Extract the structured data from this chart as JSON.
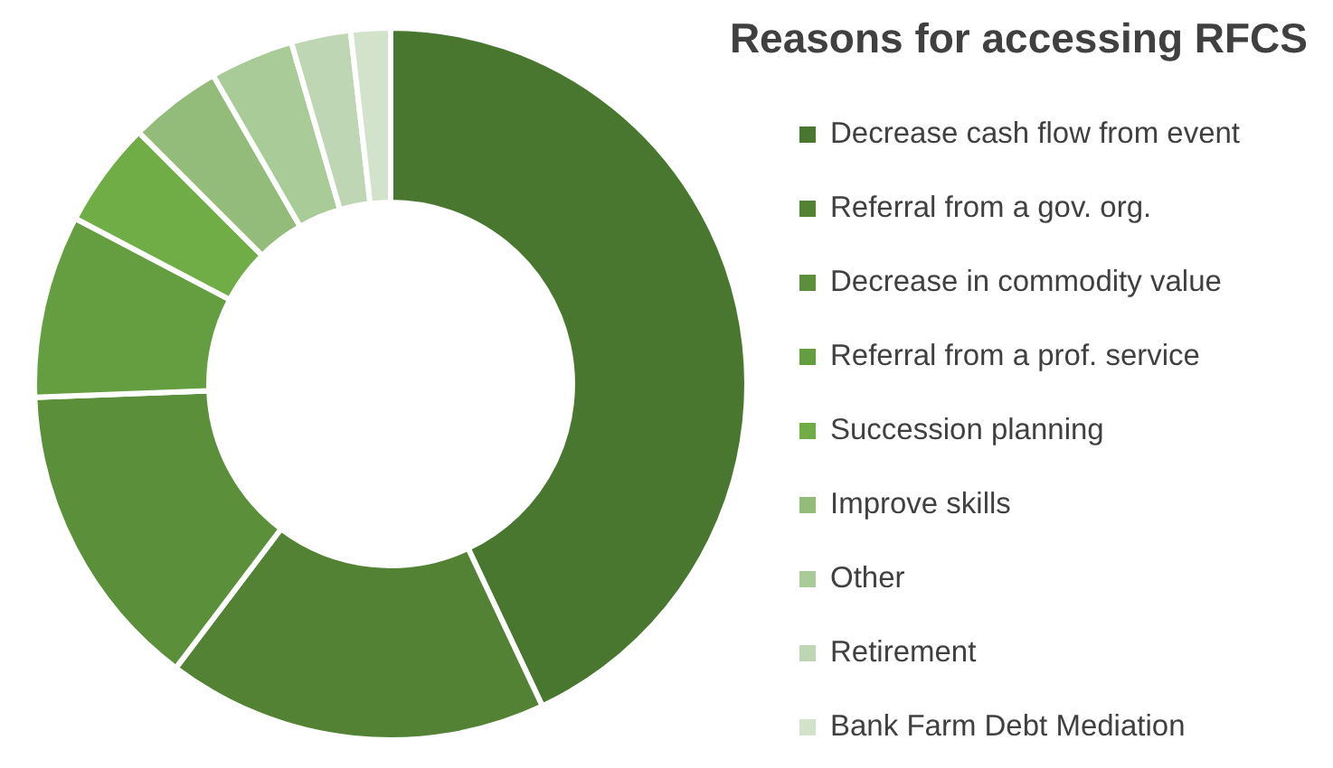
{
  "chart_data": {
    "type": "donut",
    "title": "Reasons for accessing RFCS",
    "categories": [
      "Decrease cash flow from event",
      "Referral from a gov. org.",
      "Decrease in commodity value",
      "Referral from a prof. service",
      "Succession planning",
      "Improve skills",
      "Other",
      "Retirement",
      "Bank Farm Debt Mediation"
    ],
    "values": [
      43.0,
      17.3,
      14.1,
      8.3,
      4.8,
      4.2,
      3.8,
      2.7,
      1.8
    ],
    "colors": [
      "#4a7730",
      "#548235",
      "#5b8f3a",
      "#659e40",
      "#70ad47",
      "#93bb7a",
      "#a9cb97",
      "#bfd6b4",
      "#d2e2cb"
    ],
    "legend": "right"
  }
}
